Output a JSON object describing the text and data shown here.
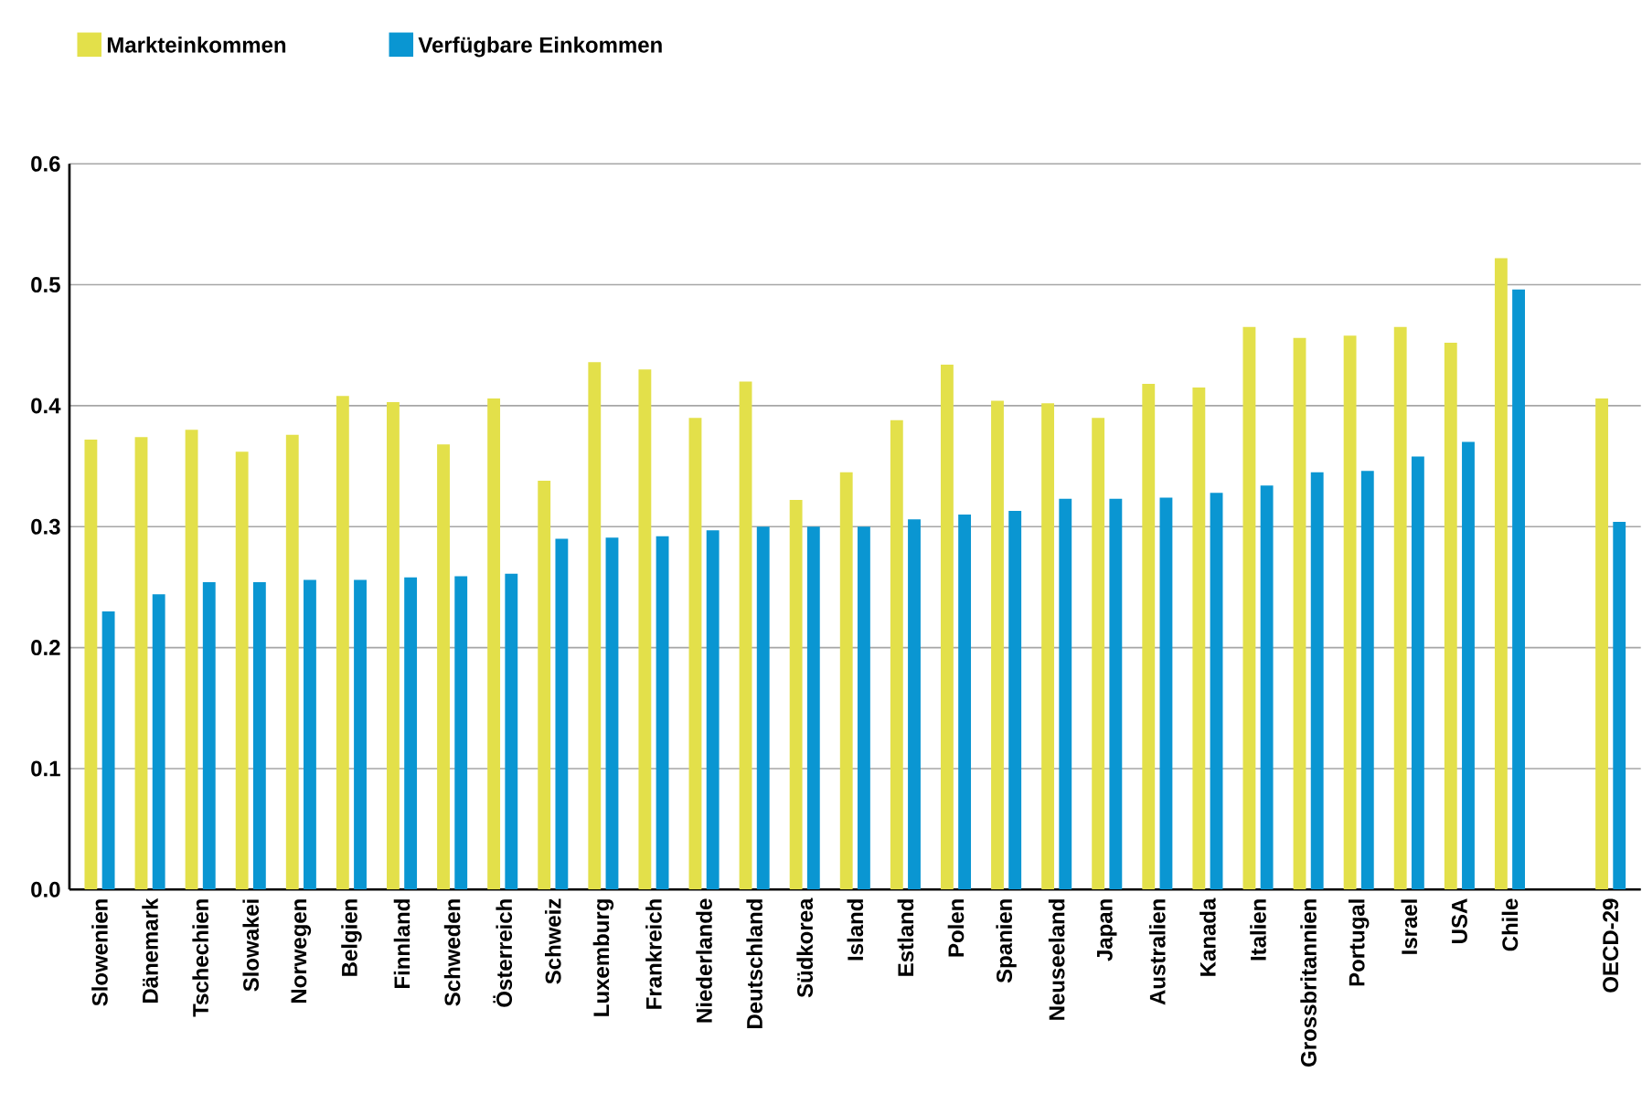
{
  "chart_data": {
    "type": "bar",
    "categories": [
      "Slowenien",
      "Dänemark",
      "Tschechien",
      "Slowakei",
      "Norwegen",
      "Belgien",
      "Finnland",
      "Schweden",
      "Österreich",
      "Schweiz",
      "Luxemburg",
      "Frankreich",
      "Niederlande",
      "Deutschland",
      "Südkorea",
      "Island",
      "Estland",
      "Polen",
      "Spanien",
      "Neuseeland",
      "Japan",
      "Australien",
      "Kanada",
      "Italien",
      "Grossbritannien",
      "Portugal",
      "Israel",
      "USA",
      "Chile",
      null,
      "OECD-29"
    ],
    "series": [
      {
        "name": "Markteinkommen",
        "color": "#e3e04a",
        "values": [
          0.372,
          0.374,
          0.38,
          0.362,
          0.376,
          0.408,
          0.403,
          0.368,
          0.406,
          0.338,
          0.436,
          0.43,
          0.39,
          0.42,
          0.322,
          0.345,
          0.388,
          0.434,
          0.404,
          0.402,
          0.39,
          0.418,
          0.415,
          0.465,
          0.456,
          0.458,
          0.465,
          0.452,
          0.522,
          null,
          0.406
        ]
      },
      {
        "name": "Verfügbare Einkommen",
        "color": "#0a96d2",
        "values": [
          0.23,
          0.244,
          0.254,
          0.254,
          0.256,
          0.256,
          0.258,
          0.259,
          0.261,
          0.29,
          0.291,
          0.292,
          0.297,
          0.3,
          0.3,
          0.3,
          0.306,
          0.31,
          0.313,
          0.323,
          0.323,
          0.324,
          0.328,
          0.334,
          0.345,
          0.346,
          0.358,
          0.37,
          0.496,
          null,
          0.304
        ]
      }
    ],
    "ylim": [
      0,
      0.6
    ],
    "yticks": [
      {
        "value": 0,
        "label": "0.0"
      },
      0.1,
      0.2,
      0.3,
      0.4,
      0.5,
      0.6
    ],
    "grid": "y",
    "legend": "top left"
  }
}
